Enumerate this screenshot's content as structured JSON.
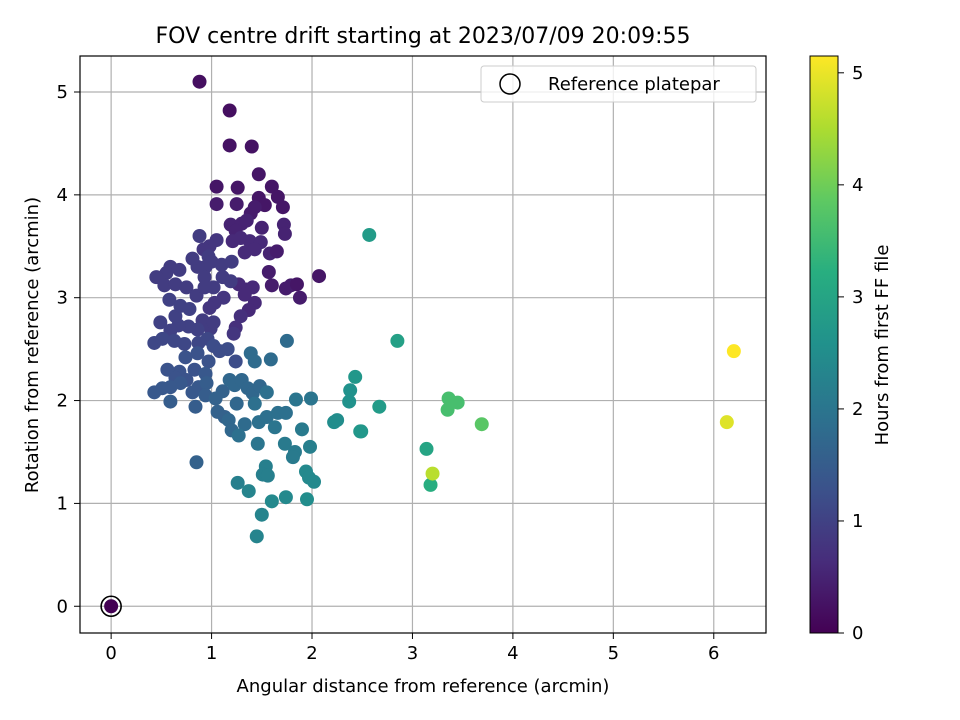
{
  "chart_data": {
    "type": "scatter",
    "title": "FOV centre drift starting at 2023/07/09 20:09:55",
    "xlabel": "Angular distance from reference (arcmin)",
    "ylabel": "Rotation from reference (arcmin)",
    "xlim": [
      -0.31,
      6.52
    ],
    "ylim": [
      -0.26,
      5.35
    ],
    "xticks": [
      0,
      1,
      2,
      3,
      4,
      5,
      6
    ],
    "yticks": [
      0,
      1,
      2,
      3,
      4,
      5
    ],
    "grid": true,
    "legend": {
      "position": "top-right",
      "entries": [
        "Reference platepar"
      ]
    },
    "colorbar": {
      "label": "Hours from first FF file",
      "colormap": "viridis",
      "range": [
        0,
        5.15
      ],
      "ticks": [
        0,
        1,
        2,
        3,
        4,
        5
      ]
    },
    "reference_point": {
      "x": 0,
      "y": 0
    },
    "points": [
      [
        0,
        0,
        0
      ],
      [
        0.88,
        5.1,
        0.2
      ],
      [
        1.18,
        4.82,
        0.2
      ],
      [
        1.18,
        4.48,
        0.25
      ],
      [
        1.4,
        4.47,
        0.25
      ],
      [
        1.47,
        4.2,
        0.3
      ],
      [
        1.05,
        4.08,
        0.3
      ],
      [
        1.26,
        4.07,
        0.3
      ],
      [
        1.6,
        4.08,
        0.3
      ],
      [
        1.66,
        3.98,
        0.3
      ],
      [
        1.47,
        3.97,
        0.3
      ],
      [
        1.53,
        3.9,
        0.3
      ],
      [
        1.71,
        3.88,
        0.3
      ],
      [
        1.05,
        3.91,
        0.4
      ],
      [
        1.25,
        3.91,
        0.4
      ],
      [
        1.43,
        3.88,
        0.4
      ],
      [
        1.39,
        3.82,
        0.4
      ],
      [
        1.19,
        3.71,
        0.5
      ],
      [
        1.3,
        3.72,
        0.5
      ],
      [
        1.24,
        3.65,
        0.5
      ],
      [
        1.35,
        3.75,
        0.5
      ],
      [
        1.5,
        3.68,
        0.5
      ],
      [
        1.72,
        3.71,
        0.5
      ],
      [
        1.73,
        3.62,
        0.5
      ],
      [
        1.21,
        3.55,
        0.6
      ],
      [
        1.29,
        3.58,
        0.6
      ],
      [
        1.38,
        3.55,
        0.6
      ],
      [
        1.49,
        3.54,
        0.6
      ],
      [
        1.43,
        3.47,
        0.6
      ],
      [
        1.33,
        3.44,
        0.6
      ],
      [
        1.58,
        3.43,
        0.5
      ],
      [
        1.65,
        3.45,
        0.4
      ],
      [
        1.57,
        3.25,
        0.4
      ],
      [
        1.6,
        3.12,
        0.4
      ],
      [
        1.74,
        3.09,
        0.4
      ],
      [
        1.79,
        3.12,
        0.4
      ],
      [
        1.85,
        3.13,
        0.3
      ],
      [
        1.88,
        3.0,
        0.4
      ],
      [
        2.07,
        3.21,
        0.3
      ],
      [
        1.27,
        3.13,
        0.6
      ],
      [
        1.35,
        3.08,
        0.6
      ],
      [
        1.41,
        3.1,
        0.6
      ],
      [
        1.33,
        3.03,
        0.6
      ],
      [
        1.43,
        2.95,
        0.6
      ],
      [
        1.37,
        2.88,
        0.6
      ],
      [
        1.29,
        2.82,
        0.7
      ],
      [
        1.24,
        2.71,
        0.7
      ],
      [
        1.22,
        2.65,
        0.8
      ],
      [
        1.05,
        3.56,
        0.8
      ],
      [
        0.98,
        3.5,
        0.8
      ],
      [
        0.92,
        3.47,
        0.8
      ],
      [
        0.88,
        3.6,
        0.9
      ],
      [
        0.97,
        3.4,
        0.9
      ],
      [
        1.0,
        3.35,
        0.9
      ],
      [
        1.1,
        3.32,
        0.9
      ],
      [
        1.2,
        3.35,
        0.9
      ],
      [
        1.11,
        3.2,
        0.9
      ],
      [
        1.19,
        3.16,
        0.9
      ],
      [
        0.94,
        3.3,
        0.9
      ],
      [
        0.93,
        3.2,
        0.9
      ],
      [
        0.86,
        3.3,
        0.9
      ],
      [
        0.81,
        3.38,
        0.9
      ],
      [
        0.68,
        3.27,
        0.9
      ],
      [
        0.59,
        3.3,
        0.9
      ],
      [
        0.55,
        3.24,
        0.9
      ],
      [
        0.45,
        3.2,
        0.9
      ],
      [
        0.53,
        3.12,
        0.9
      ],
      [
        0.64,
        3.13,
        0.9
      ],
      [
        0.75,
        3.1,
        0.9
      ],
      [
        0.85,
        3.02,
        0.9
      ],
      [
        0.93,
        3.1,
        0.9
      ],
      [
        1.02,
        3.1,
        0.9
      ],
      [
        1.12,
        3.0,
        0.8
      ],
      [
        1.03,
        2.95,
        0.8
      ],
      [
        0.98,
        2.9,
        0.8
      ],
      [
        0.91,
        2.78,
        0.9
      ],
      [
        0.99,
        2.7,
        0.9
      ],
      [
        1.02,
        2.76,
        0.9
      ],
      [
        0.86,
        2.69,
        1.0
      ],
      [
        0.77,
        2.72,
        1.0
      ],
      [
        0.67,
        2.73,
        1.0
      ],
      [
        0.64,
        2.82,
        1.0
      ],
      [
        0.58,
        2.98,
        1.0
      ],
      [
        0.69,
        2.92,
        1.0
      ],
      [
        0.78,
        2.89,
        1.0
      ],
      [
        0.49,
        2.76,
        1.0
      ],
      [
        0.59,
        2.68,
        1.0
      ],
      [
        0.43,
        2.56,
        1.1
      ],
      [
        0.51,
        2.6,
        1.1
      ],
      [
        0.63,
        2.58,
        1.1
      ],
      [
        0.73,
        2.55,
        1.1
      ],
      [
        0.87,
        2.56,
        1.1
      ],
      [
        0.96,
        2.6,
        1.1
      ],
      [
        1.02,
        2.53,
        1.2
      ],
      [
        1.08,
        2.48,
        1.2
      ],
      [
        1.16,
        2.5,
        1.2
      ],
      [
        1.24,
        2.38,
        1.2
      ],
      [
        0.97,
        2.38,
        1.3
      ],
      [
        0.86,
        2.46,
        1.3
      ],
      [
        0.74,
        2.42,
        1.3
      ],
      [
        0.68,
        2.28,
        1.3
      ],
      [
        0.56,
        2.3,
        1.3
      ],
      [
        0.64,
        2.22,
        1.3
      ],
      [
        0.75,
        2.2,
        1.3
      ],
      [
        0.83,
        2.3,
        1.3
      ],
      [
        0.94,
        2.26,
        1.4
      ],
      [
        0.87,
        2.13,
        1.4
      ],
      [
        0.81,
        2.08,
        1.4
      ],
      [
        0.69,
        2.17,
        1.4
      ],
      [
        0.59,
        2.13,
        1.4
      ],
      [
        0.51,
        2.12,
        1.4
      ],
      [
        0.43,
        2.08,
        1.4
      ],
      [
        0.59,
        1.99,
        1.5
      ],
      [
        0.95,
        2.17,
        1.5
      ],
      [
        0.94,
        2.05,
        1.5
      ],
      [
        1.04,
        2.02,
        1.6
      ],
      [
        1.11,
        2.09,
        1.6
      ],
      [
        1.06,
        1.89,
        1.6
      ],
      [
        1.13,
        1.84,
        1.6
      ],
      [
        0.84,
        1.94,
        1.5
      ],
      [
        1.18,
        2.2,
        1.7
      ],
      [
        1.23,
        2.15,
        1.7
      ],
      [
        1.3,
        2.2,
        1.7
      ],
      [
        1.36,
        2.12,
        1.7
      ],
      [
        1.41,
        2.07,
        1.7
      ],
      [
        1.48,
        2.14,
        1.7
      ],
      [
        1.25,
        1.97,
        1.7
      ],
      [
        1.17,
        1.81,
        1.7
      ],
      [
        1.2,
        1.71,
        1.7
      ],
      [
        1.33,
        1.77,
        1.8
      ],
      [
        1.39,
        2.46,
        1.8
      ],
      [
        1.43,
        2.38,
        1.8
      ],
      [
        1.59,
        2.4,
        1.8
      ],
      [
        1.75,
        2.58,
        1.8
      ],
      [
        1.55,
        2.08,
        1.9
      ],
      [
        1.43,
        1.97,
        1.9
      ],
      [
        1.47,
        1.79,
        1.9
      ],
      [
        1.55,
        1.84,
        1.9
      ],
      [
        1.66,
        1.88,
        1.9
      ],
      [
        1.74,
        1.88,
        1.9
      ],
      [
        1.84,
        2.01,
        2.0
      ],
      [
        1.99,
        2.02,
        2.0
      ],
      [
        1.63,
        1.74,
        2.0
      ],
      [
        1.27,
        1.66,
        1.9
      ],
      [
        1.46,
        1.58,
        2.0
      ],
      [
        1.73,
        1.58,
        2.1
      ],
      [
        1.83,
        1.5,
        2.1
      ],
      [
        1.81,
        1.45,
        2.1
      ],
      [
        1.9,
        1.72,
        2.1
      ],
      [
        1.98,
        1.55,
        2.2
      ],
      [
        1.54,
        1.36,
        2.2
      ],
      [
        1.51,
        1.28,
        2.2
      ],
      [
        1.56,
        1.27,
        2.2
      ],
      [
        1.26,
        1.2,
        2.2
      ],
      [
        1.37,
        1.12,
        2.3
      ],
      [
        1.5,
        0.89,
        2.3
      ],
      [
        1.45,
        0.68,
        2.3
      ],
      [
        1.6,
        1.02,
        2.4
      ],
      [
        1.74,
        1.06,
        2.4
      ],
      [
        1.94,
        1.31,
        2.4
      ],
      [
        1.97,
        1.25,
        2.4
      ],
      [
        2.02,
        1.21,
        2.4
      ],
      [
        1.95,
        1.04,
        2.5
      ],
      [
        0.85,
        1.4,
        1.6
      ],
      [
        2.22,
        1.79,
        2.5
      ],
      [
        2.25,
        1.81,
        2.5
      ],
      [
        2.37,
        1.99,
        2.6
      ],
      [
        2.38,
        2.1,
        2.6
      ],
      [
        2.43,
        2.23,
        2.7
      ],
      [
        2.48,
        1.7,
        2.7
      ],
      [
        2.49,
        1.7,
        2.7
      ],
      [
        2.57,
        3.61,
        2.8
      ],
      [
        2.67,
        1.94,
        2.8
      ],
      [
        2.85,
        2.58,
        2.9
      ],
      [
        3.14,
        1.53,
        3.0
      ],
      [
        3.18,
        1.18,
        3.2
      ],
      [
        3.35,
        1.91,
        3.6
      ],
      [
        3.36,
        2.02,
        3.6
      ],
      [
        3.45,
        1.98,
        3.6
      ],
      [
        3.69,
        1.77,
        3.8
      ],
      [
        3.2,
        1.29,
        4.6
      ],
      [
        6.13,
        1.79,
        4.9
      ],
      [
        6.2,
        2.48,
        5.15
      ]
    ]
  }
}
